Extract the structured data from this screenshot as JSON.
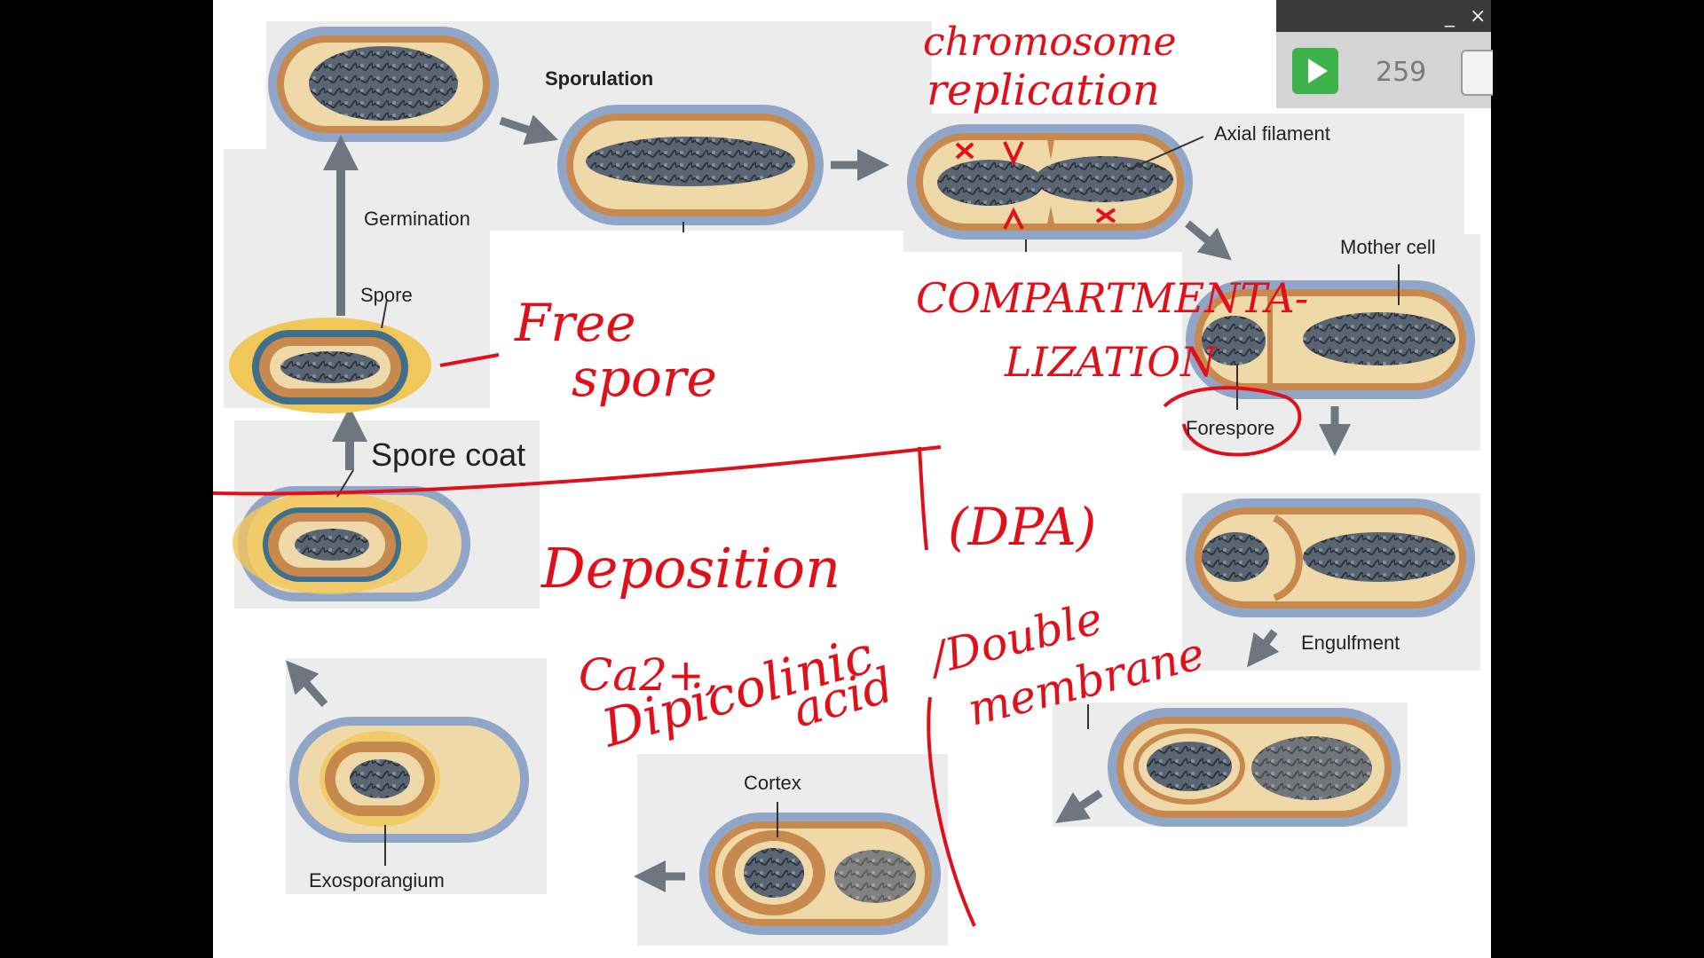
{
  "labels": {
    "sporulation": "Sporulation",
    "germination": "Germination",
    "spore": "Spore",
    "spore_coat": "Spore coat",
    "axial_filament": "Axial filament",
    "mother_cell": "Mother cell",
    "forespore": "Forespore",
    "engulfment": "Engulfment",
    "cortex": "Cortex",
    "exosporangium": "Exosporangium"
  },
  "annotations": {
    "chromosome": "chromosome",
    "replication": "replication",
    "free": "Free",
    "spore": "spore",
    "compartmenta": "COMPARTMENTA-",
    "lization": "LIZATION",
    "deposition": "Deposition",
    "dpa": "(DPA)",
    "ca": "Ca2+,",
    "dipicolinic": "Dipicolinic",
    "acid": "acid",
    "double": "/Double",
    "membrane": "membrane"
  },
  "player": {
    "minimize": "_",
    "close": "×",
    "counter": "259"
  },
  "colors": {
    "ink": "#e0101a",
    "cell_wall": "#8fa6c8",
    "cytoplasm": "#efd9a8",
    "membrane": "#c8894e",
    "dna": "#4d5866",
    "panel": "#ececec"
  }
}
